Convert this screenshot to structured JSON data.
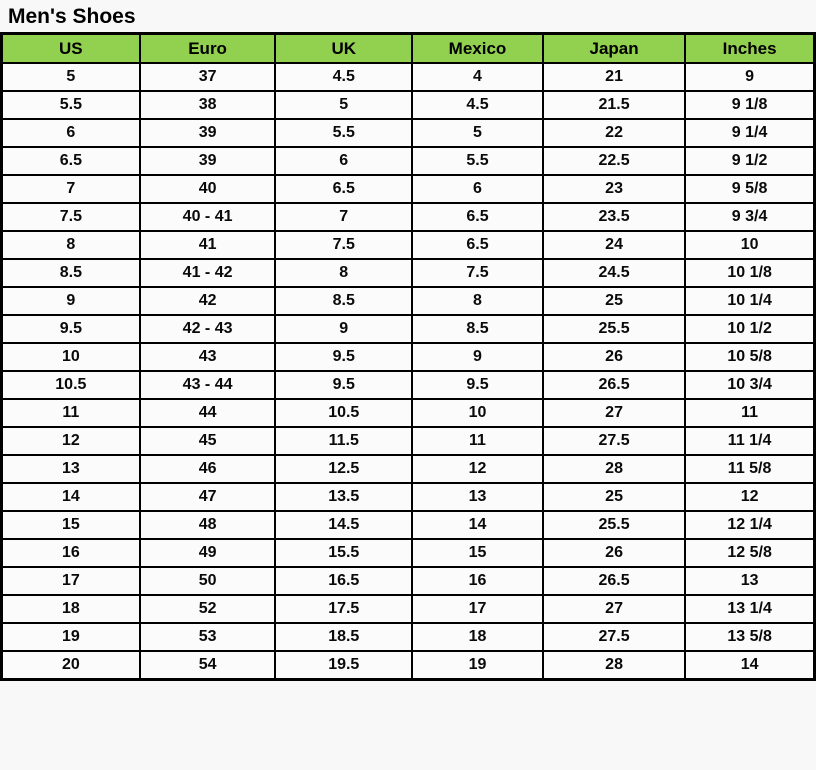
{
  "page": {
    "title": "Men's Shoes"
  },
  "colors": {
    "header_bg": "#92D050",
    "border": "#000000",
    "cell_bg": "#FBFBFB",
    "page_bg": "#F8F8F8",
    "text": "#0A0A0A"
  },
  "chart_data": {
    "type": "table",
    "title": "Men's Shoes",
    "columns": [
      "US",
      "Euro",
      "UK",
      "Mexico",
      "Japan",
      "Inches"
    ],
    "rows": [
      [
        "5",
        "37",
        "4.5",
        "4",
        "21",
        "9"
      ],
      [
        "5.5",
        "38",
        "5",
        "4.5",
        "21.5",
        "9 1/8"
      ],
      [
        "6",
        "39",
        "5.5",
        "5",
        "22",
        "9 1/4"
      ],
      [
        "6.5",
        "39",
        "6",
        "5.5",
        "22.5",
        "9 1/2"
      ],
      [
        "7",
        "40",
        "6.5",
        "6",
        "23",
        "9 5/8"
      ],
      [
        "7.5",
        "40 - 41",
        "7",
        "6.5",
        "23.5",
        "9 3/4"
      ],
      [
        "8",
        "41",
        "7.5",
        "6.5",
        "24",
        "10"
      ],
      [
        "8.5",
        "41 - 42",
        "8",
        "7.5",
        "24.5",
        "10 1/8"
      ],
      [
        "9",
        "42",
        "8.5",
        "8",
        "25",
        "10 1/4"
      ],
      [
        "9.5",
        "42 - 43",
        "9",
        "8.5",
        "25.5",
        "10 1/2"
      ],
      [
        "10",
        "43",
        "9.5",
        "9",
        "26",
        "10 5/8"
      ],
      [
        "10.5",
        "43 - 44",
        "9.5",
        "9.5",
        "26.5",
        "10 3/4"
      ],
      [
        "11",
        "44",
        "10.5",
        "10",
        "27",
        "11"
      ],
      [
        "12",
        "45",
        "11.5",
        "11",
        "27.5",
        "11 1/4"
      ],
      [
        "13",
        "46",
        "12.5",
        "12",
        "28",
        "11 5/8"
      ],
      [
        "14",
        "47",
        "13.5",
        "13",
        "25",
        "12"
      ],
      [
        "15",
        "48",
        "14.5",
        "14",
        "25.5",
        "12 1/4"
      ],
      [
        "16",
        "49",
        "15.5",
        "15",
        "26",
        "12 5/8"
      ],
      [
        "17",
        "50",
        "16.5",
        "16",
        "26.5",
        "13"
      ],
      [
        "18",
        "52",
        "17.5",
        "17",
        "27",
        "13 1/4"
      ],
      [
        "19",
        "53",
        "18.5",
        "18",
        "27.5",
        "13 5/8"
      ],
      [
        "20",
        "54",
        "19.5",
        "19",
        "28",
        "14"
      ]
    ]
  }
}
